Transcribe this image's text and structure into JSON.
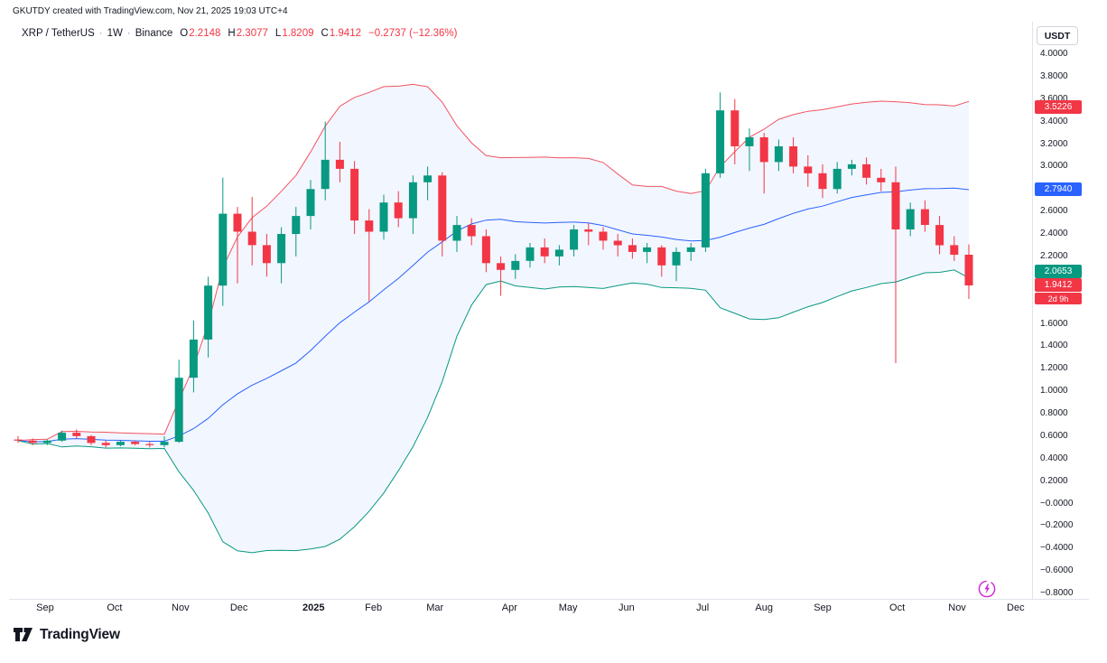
{
  "attribution": "GKUTDY created with TradingView.com, Nov 21, 2025 19:03 UTC+4",
  "header": {
    "symbol": "XRP / TetherUS",
    "interval": "1W",
    "exchange": "Binance",
    "separator": "·",
    "ohlc": {
      "open_label": "O",
      "open": "2.2148",
      "high_label": "H",
      "high": "2.3077",
      "low_label": "L",
      "low": "1.8209",
      "close_label": "C",
      "close": "1.9412",
      "change": "−0.2737 (−12.36%)"
    }
  },
  "price_axis": {
    "currency_button_label": "USDT",
    "ticks": [
      {
        "label": "4.0000",
        "value": 4.0
      },
      {
        "label": "3.8000",
        "value": 3.8
      },
      {
        "label": "3.6000",
        "value": 3.6
      },
      {
        "label": "3.4000",
        "value": 3.4
      },
      {
        "label": "3.2000",
        "value": 3.2
      },
      {
        "label": "3.0000",
        "value": 3.0
      },
      {
        "label": "2.6000",
        "value": 2.6
      },
      {
        "label": "2.4000",
        "value": 2.4
      },
      {
        "label": "2.2000",
        "value": 2.2
      },
      {
        "label": "1.6000",
        "value": 1.6
      },
      {
        "label": "1.4000",
        "value": 1.4
      },
      {
        "label": "1.2000",
        "value": 1.2
      },
      {
        "label": "1.0000",
        "value": 1.0
      },
      {
        "label": "0.8000",
        "value": 0.8
      },
      {
        "label": "0.6000",
        "value": 0.6
      },
      {
        "label": "0.4000",
        "value": 0.4
      },
      {
        "label": "0.2000",
        "value": 0.2
      },
      {
        "label": "−0.0000",
        "value": 0.0
      },
      {
        "label": "−0.2000",
        "value": -0.2
      },
      {
        "label": "−0.4000",
        "value": -0.4
      },
      {
        "label": "−0.6000",
        "value": -0.6
      },
      {
        "label": "−0.8000",
        "value": -0.8
      }
    ],
    "badges": [
      {
        "name": "bb-upper-price-label",
        "label": "3.5226",
        "value": 3.5226,
        "color": "#f23645"
      },
      {
        "name": "bb-basis-price-label",
        "label": "2.7940",
        "value": 2.794,
        "color": "#2962ff"
      },
      {
        "name": "bb-lower-price-label",
        "label": "2.0653",
        "value": 2.0653,
        "color": "#089981"
      },
      {
        "name": "last-price-label",
        "label": "1.9412",
        "value": 1.9412,
        "color": "#f23645"
      },
      {
        "name": "bar-countdown-label",
        "label": "2d 9h",
        "value": 1.9412,
        "color": "#f23645",
        "countdown": true
      }
    ]
  },
  "time_axis": {
    "labels": [
      {
        "text": "Sep",
        "i": 1.85
      },
      {
        "text": "Oct",
        "i": 6.6
      },
      {
        "text": "Nov",
        "i": 11.1
      },
      {
        "text": "Dec",
        "i": 15.1
      },
      {
        "text": "2025",
        "i": 20.2,
        "bold": true
      },
      {
        "text": "Feb",
        "i": 24.3
      },
      {
        "text": "Mar",
        "i": 28.5
      },
      {
        "text": "Apr",
        "i": 33.6
      },
      {
        "text": "May",
        "i": 37.6
      },
      {
        "text": "Jun",
        "i": 41.6
      },
      {
        "text": "Jul",
        "i": 46.8
      },
      {
        "text": "Aug",
        "i": 51.0
      },
      {
        "text": "Sep",
        "i": 55.0
      },
      {
        "text": "Oct",
        "i": 60.1
      },
      {
        "text": "Nov",
        "i": 64.2
      },
      {
        "text": "Dec",
        "i": 68.2
      }
    ]
  },
  "chart_data": {
    "type": "candlestick",
    "title": "XRP / TetherUS · 1W · Binance",
    "ylim": [
      -0.8,
      4.0
    ],
    "tick_step": 0.2,
    "last_open": 2.2148,
    "last_high": 2.3077,
    "last_low": 1.8209,
    "last_close": 1.9412,
    "change": -0.2737,
    "change_pct": -12.36,
    "overlays": [
      {
        "type": "bollinger_bands",
        "period": 20,
        "stddev": 2,
        "current_upper": 3.5226,
        "current_basis": 2.794,
        "current_lower": 2.0653
      }
    ],
    "candles_ohlc": [
      [
        0.57,
        0.6,
        0.54,
        0.56
      ],
      [
        0.56,
        0.58,
        0.52,
        0.54
      ],
      [
        0.54,
        0.57,
        0.52,
        0.56
      ],
      [
        0.56,
        0.65,
        0.55,
        0.63
      ],
      [
        0.63,
        0.66,
        0.58,
        0.6
      ],
      [
        0.6,
        0.61,
        0.52,
        0.54
      ],
      [
        0.54,
        0.56,
        0.5,
        0.52
      ],
      [
        0.52,
        0.56,
        0.51,
        0.55
      ],
      [
        0.55,
        0.56,
        0.52,
        0.53
      ],
      [
        0.53,
        0.55,
        0.5,
        0.52
      ],
      [
        0.52,
        0.6,
        0.5,
        0.55
      ],
      [
        0.55,
        1.28,
        0.54,
        1.12
      ],
      [
        1.12,
        1.63,
        0.99,
        1.46
      ],
      [
        1.46,
        2.02,
        1.3,
        1.94
      ],
      [
        1.94,
        2.9,
        1.76,
        2.58
      ],
      [
        2.58,
        2.64,
        1.96,
        2.42
      ],
      [
        2.42,
        2.73,
        2.12,
        2.3
      ],
      [
        2.3,
        2.4,
        2.02,
        2.14
      ],
      [
        2.14,
        2.46,
        1.96,
        2.4
      ],
      [
        2.4,
        2.64,
        2.2,
        2.56
      ],
      [
        2.56,
        2.88,
        2.44,
        2.8
      ],
      [
        2.8,
        3.4,
        2.7,
        3.06
      ],
      [
        3.06,
        3.22,
        2.86,
        2.98
      ],
      [
        2.98,
        3.05,
        2.4,
        2.52
      ],
      [
        2.52,
        2.62,
        1.8,
        2.42
      ],
      [
        2.42,
        2.75,
        2.35,
        2.68
      ],
      [
        2.68,
        2.78,
        2.46,
        2.54
      ],
      [
        2.54,
        2.92,
        2.4,
        2.86
      ],
      [
        2.86,
        3.0,
        2.7,
        2.92
      ],
      [
        2.92,
        2.95,
        2.2,
        2.34
      ],
      [
        2.34,
        2.56,
        2.24,
        2.48
      ],
      [
        2.48,
        2.54,
        2.3,
        2.38
      ],
      [
        2.38,
        2.44,
        2.06,
        2.14
      ],
      [
        2.14,
        2.2,
        1.85,
        2.08
      ],
      [
        2.08,
        2.22,
        2.0,
        2.16
      ],
      [
        2.16,
        2.32,
        2.1,
        2.28
      ],
      [
        2.28,
        2.36,
        2.14,
        2.2
      ],
      [
        2.2,
        2.3,
        2.12,
        2.26
      ],
      [
        2.26,
        2.48,
        2.2,
        2.44
      ],
      [
        2.44,
        2.5,
        2.3,
        2.42
      ],
      [
        2.42,
        2.46,
        2.26,
        2.34
      ],
      [
        2.34,
        2.4,
        2.2,
        2.3
      ],
      [
        2.3,
        2.36,
        2.18,
        2.24
      ],
      [
        2.24,
        2.32,
        2.14,
        2.28
      ],
      [
        2.28,
        2.3,
        2.02,
        2.12
      ],
      [
        2.12,
        2.28,
        1.98,
        2.24
      ],
      [
        2.24,
        2.32,
        2.16,
        2.28
      ],
      [
        2.28,
        2.98,
        2.24,
        2.94
      ],
      [
        2.94,
        3.66,
        2.9,
        3.5
      ],
      [
        3.5,
        3.6,
        3.02,
        3.18
      ],
      [
        3.18,
        3.34,
        2.96,
        3.26
      ],
      [
        3.26,
        3.3,
        2.76,
        3.04
      ],
      [
        3.04,
        3.24,
        2.96,
        3.18
      ],
      [
        3.18,
        3.26,
        2.94,
        3.0
      ],
      [
        3.0,
        3.1,
        2.82,
        2.94
      ],
      [
        2.94,
        3.02,
        2.72,
        2.8
      ],
      [
        2.8,
        3.04,
        2.76,
        2.98
      ],
      [
        2.98,
        3.06,
        2.92,
        3.02
      ],
      [
        3.02,
        3.08,
        2.84,
        2.9
      ],
      [
        2.9,
        2.98,
        2.78,
        2.86
      ],
      [
        2.86,
        3.0,
        1.25,
        2.44
      ],
      [
        2.44,
        2.68,
        2.38,
        2.62
      ],
      [
        2.62,
        2.7,
        2.42,
        2.48
      ],
      [
        2.48,
        2.56,
        2.22,
        2.3
      ],
      [
        2.3,
        2.38,
        2.16,
        2.2148
      ],
      [
        2.2148,
        2.3077,
        1.8209,
        1.9412
      ]
    ],
    "colors": {
      "up": "#089981",
      "down": "#f23645",
      "bb_upper": "#f23645",
      "bb_basis": "#2962ff",
      "bb_lower": "#089981",
      "bb_fill": "rgba(40,98,255,0.06)"
    }
  },
  "footer": {
    "brand": "TradingView"
  },
  "misc": {
    "flash_color": "#d122d1"
  }
}
